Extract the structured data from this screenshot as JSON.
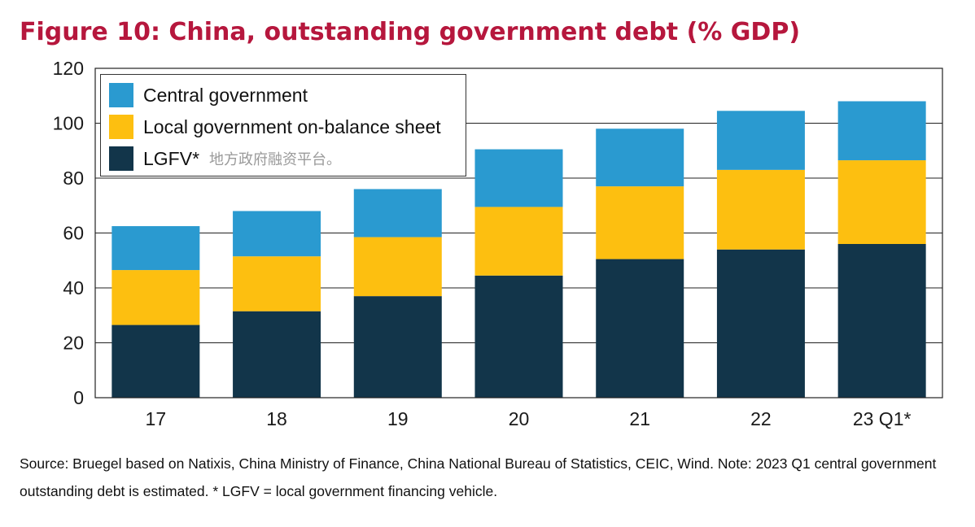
{
  "title": "Figure 10: China, outstanding government debt (% GDP)",
  "source_note": "Source: Bruegel based on Natixis, China Ministry of Finance, China National Bureau of Statistics, CEIC, Wind. Note: 2023 Q1 central government outstanding debt is estimated. * LGFV = local government financing vehicle.",
  "legend": {
    "central": "Central government",
    "local": "Local government on-balance sheet",
    "lgfv": "LGFV*",
    "lgfv_note": "地方政府融资平台。"
  },
  "chart_data": {
    "type": "bar",
    "stacked": true,
    "categories": [
      "17",
      "18",
      "19",
      "20",
      "21",
      "22",
      "23 Q1*"
    ],
    "series": [
      {
        "name": "LGFV*",
        "color": "#12354a",
        "values": [
          26.5,
          31.5,
          37,
          44.5,
          50.5,
          54,
          56
        ]
      },
      {
        "name": "Local government on-balance sheet",
        "color": "#fdbf10",
        "values": [
          20,
          20,
          21.5,
          25,
          26.5,
          29,
          30.5
        ]
      },
      {
        "name": "Central government",
        "color": "#2a9ad0",
        "values": [
          16,
          16.5,
          17.5,
          21,
          21,
          21.5,
          21.5
        ]
      }
    ],
    "ylim": [
      0,
      120
    ],
    "yticks": [
      0,
      20,
      40,
      60,
      80,
      100,
      120
    ],
    "grid": true,
    "legend_position": "top-left"
  }
}
